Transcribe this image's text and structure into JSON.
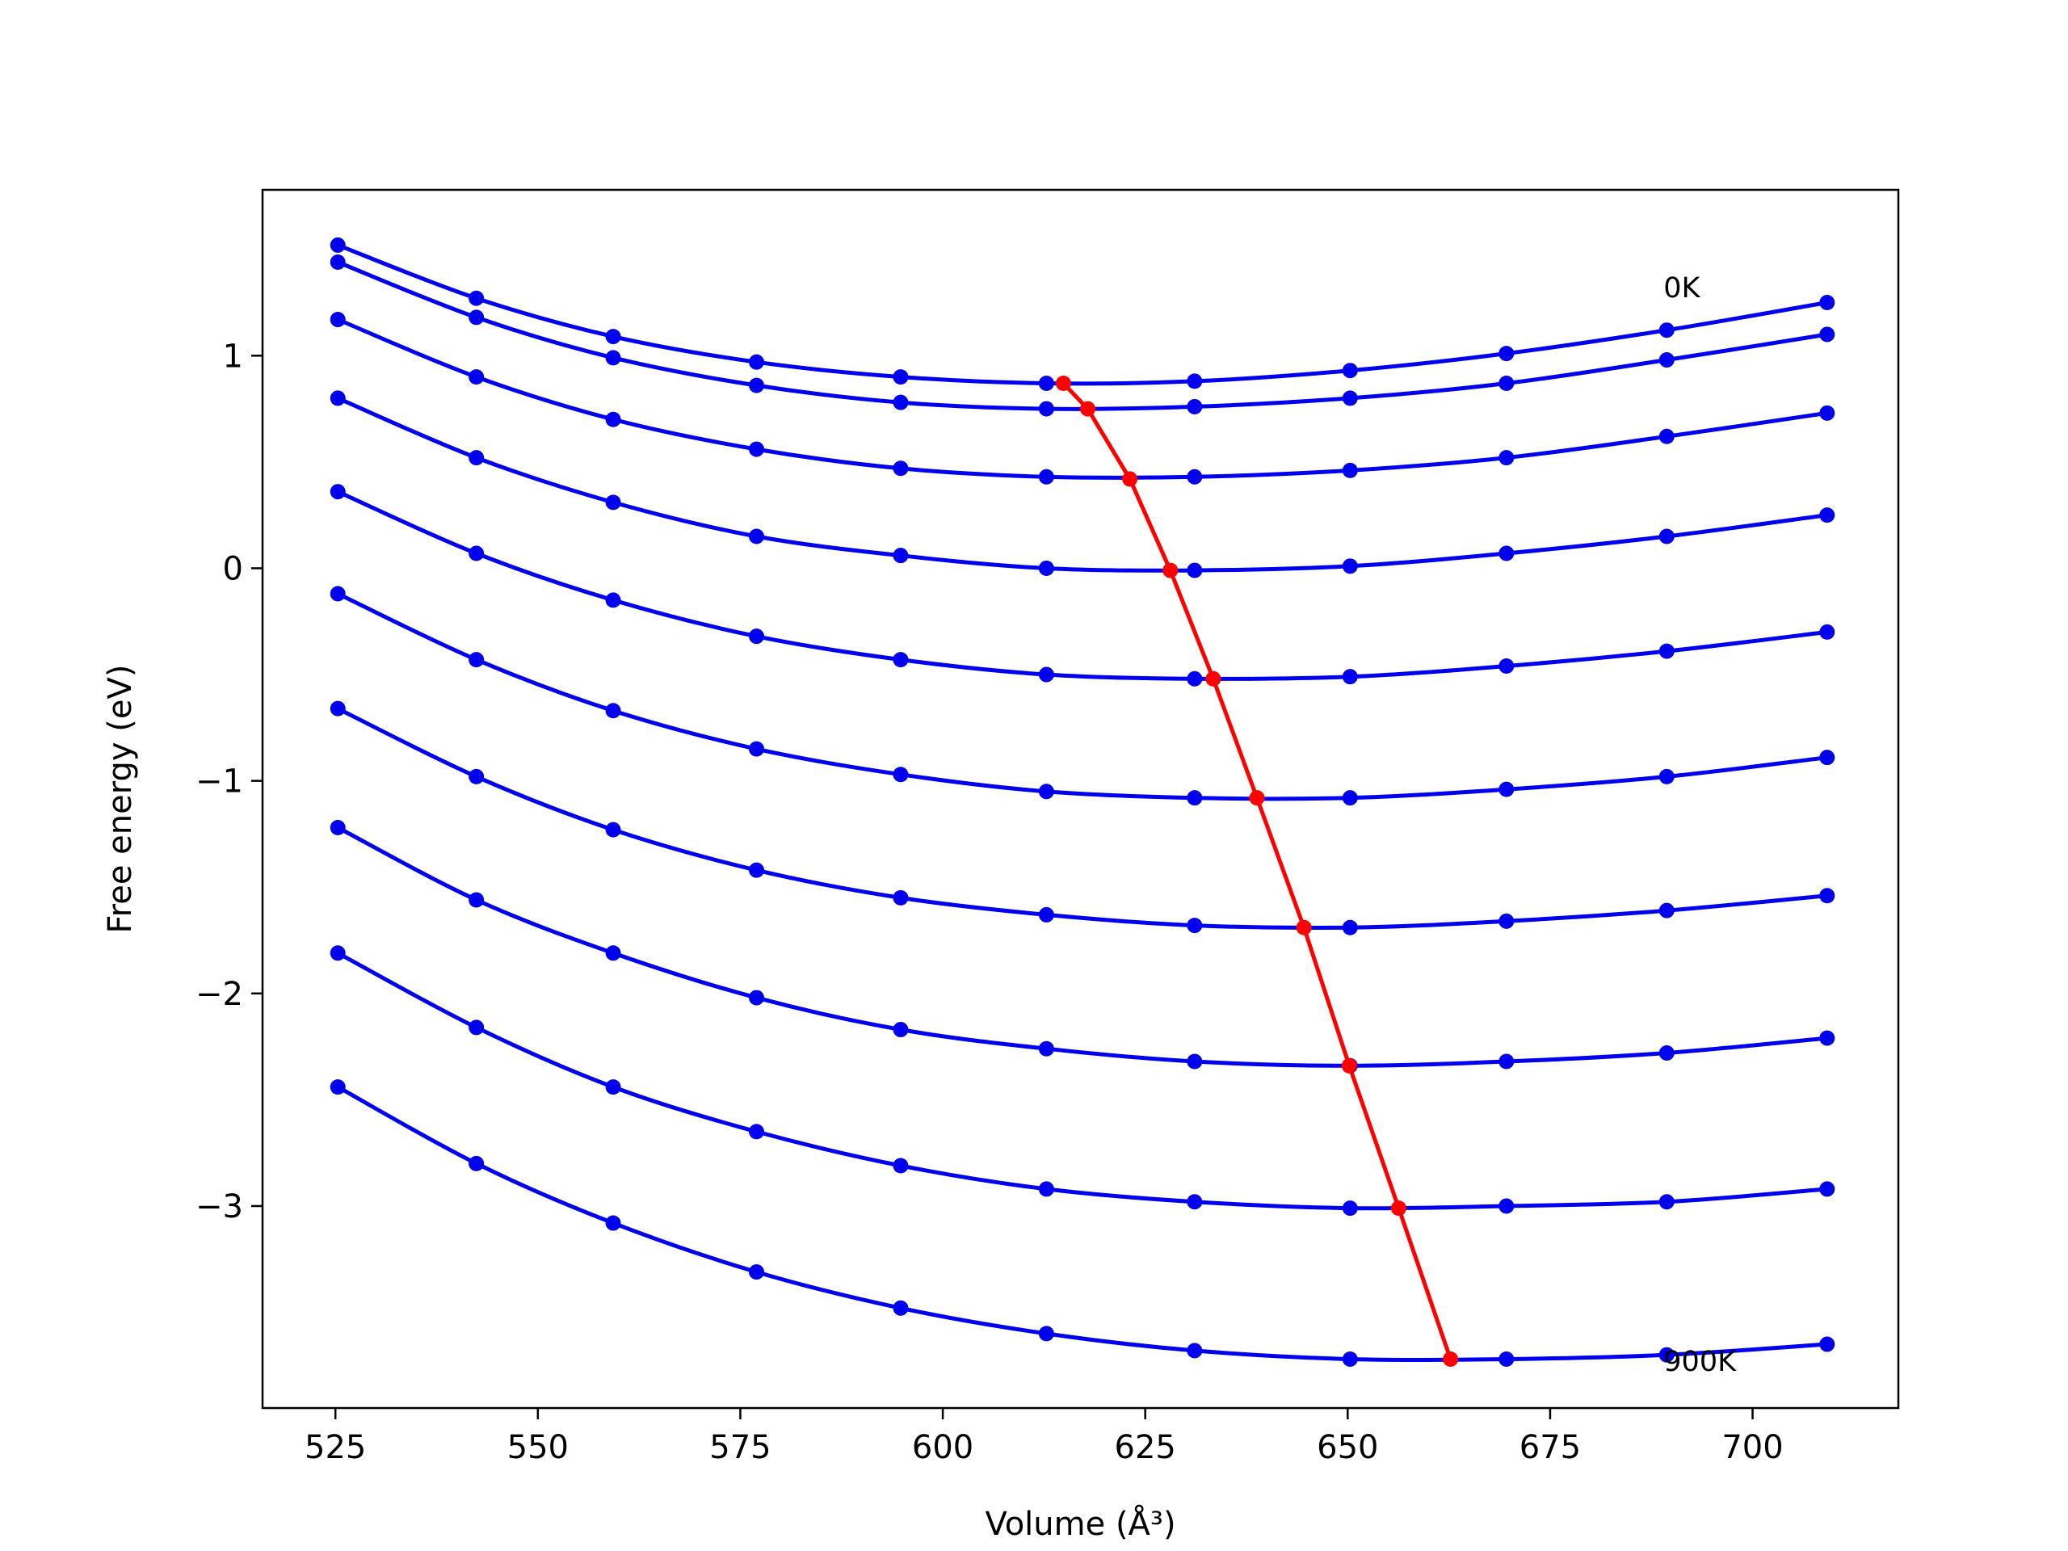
{
  "chart_data": {
    "type": "line",
    "xlabel": "Volume (Å³)",
    "ylabel": "Free energy (eV)",
    "xlim": [
      516,
      718
    ],
    "ylim": [
      -3.95,
      1.78
    ],
    "xticks": [
      525,
      550,
      575,
      600,
      625,
      650,
      675,
      700
    ],
    "yticks": [
      1,
      0,
      -1,
      -2,
      -3
    ],
    "ytick_labels": [
      "1",
      "0",
      "−1",
      "−2",
      "−3"
    ],
    "grid": false,
    "legend": "none",
    "annotations": [
      {
        "text": "0K",
        "x": 689,
        "y": 1.32
      },
      {
        "text": "900K",
        "x": 689,
        "y": -3.73
      }
    ],
    "x": [
      525.3,
      542.4,
      559.3,
      577.0,
      594.8,
      612.8,
      631.1,
      650.3,
      669.6,
      689.4,
      709.2
    ],
    "series": [
      {
        "color": "#0000ee",
        "values": [
          1.52,
          1.27,
          1.09,
          0.97,
          0.9,
          0.87,
          0.88,
          0.93,
          1.01,
          1.12,
          1.25
        ]
      },
      {
        "color": "#0000ee",
        "values": [
          1.44,
          1.18,
          0.99,
          0.86,
          0.78,
          0.75,
          0.76,
          0.8,
          0.87,
          0.98,
          1.1
        ]
      },
      {
        "color": "#0000ee",
        "values": [
          1.17,
          0.9,
          0.7,
          0.56,
          0.47,
          0.43,
          0.43,
          0.46,
          0.52,
          0.62,
          0.73
        ]
      },
      {
        "color": "#0000ee",
        "values": [
          0.8,
          0.52,
          0.31,
          0.15,
          0.06,
          0.0,
          -0.01,
          0.01,
          0.07,
          0.15,
          0.25
        ]
      },
      {
        "color": "#0000ee",
        "values": [
          0.36,
          0.07,
          -0.15,
          -0.32,
          -0.43,
          -0.5,
          -0.52,
          -0.51,
          -0.46,
          -0.39,
          -0.3
        ]
      },
      {
        "color": "#0000ee",
        "values": [
          -0.12,
          -0.43,
          -0.67,
          -0.85,
          -0.97,
          -1.05,
          -1.08,
          -1.08,
          -1.04,
          -0.98,
          -0.89
        ]
      },
      {
        "color": "#0000ee",
        "values": [
          -0.66,
          -0.98,
          -1.23,
          -1.42,
          -1.55,
          -1.63,
          -1.68,
          -1.69,
          -1.66,
          -1.61,
          -1.54
        ]
      },
      {
        "color": "#0000ee",
        "values": [
          -1.22,
          -1.56,
          -1.81,
          -2.02,
          -2.17,
          -2.26,
          -2.32,
          -2.34,
          -2.32,
          -2.28,
          -2.21
        ]
      },
      {
        "color": "#0000ee",
        "values": [
          -1.81,
          -2.16,
          -2.44,
          -2.65,
          -2.81,
          -2.92,
          -2.98,
          -3.01,
          -3.0,
          -2.98,
          -2.92
        ]
      },
      {
        "color": "#0000ee",
        "values": [
          -2.44,
          -2.8,
          -3.08,
          -3.31,
          -3.48,
          -3.6,
          -3.68,
          -3.72,
          -3.72,
          -3.7,
          -3.65
        ]
      }
    ],
    "minima": {
      "color": "#ff0000",
      "x": [
        614.9,
        617.9,
        623.1,
        628.1,
        633.4,
        638.8,
        644.6,
        650.2,
        656.3,
        662.7
      ],
      "y": [
        0.87,
        0.75,
        0.42,
        -0.01,
        -0.52,
        -1.08,
        -1.69,
        -2.34,
        -3.01,
        -3.72
      ]
    }
  }
}
